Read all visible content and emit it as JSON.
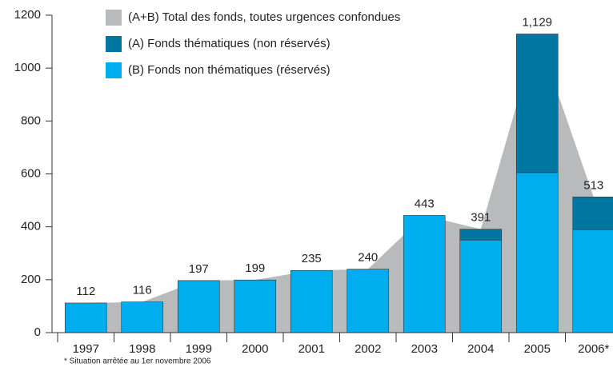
{
  "chart_data": {
    "type": "bar",
    "categories": [
      "1997",
      "1998",
      "1999",
      "2000",
      "2001",
      "2002",
      "2003",
      "2004",
      "2005",
      "2006*"
    ],
    "series": [
      {
        "name": "(A+B) Total des fonds, toutes urgences confondues",
        "color": "#b9babc",
        "values": [
          112,
          116,
          197,
          199,
          235,
          240,
          443,
          391,
          1129,
          513
        ],
        "value_labels": [
          "112",
          "116",
          "197",
          "199",
          "235",
          "240",
          "443",
          "391",
          "1,129",
          "513"
        ]
      },
      {
        "name": "(A) Fonds thématiques (non réservés)",
        "color": "#0077a3",
        "values": [
          0,
          0,
          0,
          0,
          0,
          0,
          0,
          41,
          524,
          123
        ]
      },
      {
        "name": "(B) Fonds non thématiques (réservés)",
        "color": "#00adef",
        "values": [
          112,
          116,
          197,
          199,
          235,
          240,
          443,
          350,
          605,
          390
        ]
      }
    ],
    "ylim": [
      0,
      1200
    ],
    "yticks": [
      0,
      200,
      400,
      600,
      800,
      1000,
      1200
    ],
    "footnote": "* Situation arrêtée au 1er novembre 2006"
  }
}
